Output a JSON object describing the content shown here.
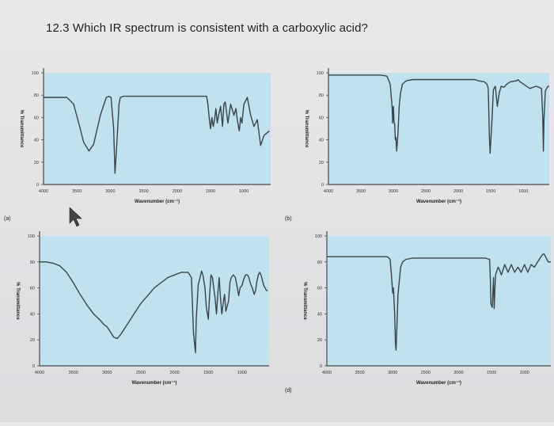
{
  "question": "12.3 Which IR spectrum is consistent with a carboxylic acid?",
  "colors": {
    "plot_bg": "#bfe2ee",
    "trace": "#3a4447",
    "axis": "#4a4a4a",
    "page_bg": "#e6e5e8"
  },
  "chart_data": [
    {
      "type": "line",
      "panel_label": "(a)",
      "xlabel": "Wavenumber (cm⁻¹)",
      "ylabel": "% Transmittance",
      "xlim": [
        4000,
        600
      ],
      "ylim": [
        0,
        100
      ],
      "x_ticks": [
        "4000",
        "3500",
        "3000",
        "2500",
        "2000",
        "1500",
        "1000"
      ],
      "y_ticks": [
        "0",
        "20",
        "40",
        "60",
        "80",
        "100"
      ],
      "x": [
        4000,
        3750,
        3650,
        3550,
        3450,
        3400,
        3320,
        3250,
        3150,
        3060,
        3020,
        2990,
        2950,
        2930,
        2900,
        2870,
        2850,
        2800,
        2500,
        2000,
        1700,
        1560,
        1540,
        1520,
        1500,
        1480,
        1460,
        1440,
        1420,
        1400,
        1380,
        1350,
        1320,
        1300,
        1280,
        1240,
        1200,
        1150,
        1120,
        1100,
        1070,
        1050,
        1030,
        1000,
        950,
        900,
        850,
        800,
        750,
        700,
        620
      ],
      "y": [
        78,
        78,
        78,
        72,
        50,
        38,
        30,
        36,
        62,
        78,
        79,
        78,
        50,
        10,
        40,
        72,
        78,
        79,
        79,
        79,
        79,
        79,
        72,
        60,
        50,
        60,
        52,
        58,
        68,
        55,
        62,
        70,
        52,
        72,
        74,
        55,
        72,
        62,
        68,
        58,
        48,
        60,
        55,
        72,
        78,
        62,
        52,
        58,
        35,
        44,
        48
      ]
    },
    {
      "type": "line",
      "panel_label": "(b)",
      "xlabel": "Wavenumber (cm⁻¹)",
      "ylabel": "% Transmittance",
      "xlim": [
        4000,
        600
      ],
      "ylim": [
        0,
        100
      ],
      "x_ticks": [
        "4000",
        "3500",
        "3000",
        "2500",
        "2000",
        "1500",
        "1000"
      ],
      "y_ticks": [
        "0",
        "20",
        "40",
        "60",
        "80",
        "100"
      ],
      "x": [
        4000,
        3500,
        3200,
        3100,
        3050,
        3020,
        3010,
        3000,
        2990,
        2980,
        2970,
        2960,
        2950,
        2930,
        2910,
        2890,
        2860,
        2800,
        2700,
        2500,
        2000,
        1750,
        1740,
        1700,
        1600,
        1560,
        1540,
        1520,
        1510,
        1480,
        1460,
        1430,
        1400,
        1370,
        1340,
        1300,
        1250,
        1200,
        1100,
        1080,
        1050,
        1000,
        950,
        900,
        800,
        720,
        700,
        690,
        680,
        660,
        640,
        620,
        600
      ],
      "y": [
        98,
        98,
        98,
        97,
        90,
        70,
        55,
        70,
        56,
        54,
        40,
        42,
        30,
        45,
        70,
        82,
        90,
        93,
        94,
        94,
        94,
        94,
        94,
        93,
        92,
        90,
        86,
        40,
        28,
        60,
        85,
        88,
        70,
        82,
        88,
        87,
        90,
        92,
        93,
        94,
        92,
        90,
        88,
        86,
        88,
        86,
        60,
        30,
        60,
        84,
        86,
        88,
        88
      ]
    },
    {
      "type": "line",
      "panel_label": "",
      "xlabel": "Wavenumber (cm⁻¹)",
      "ylabel": "% Transmittance",
      "xlim": [
        4000,
        600
      ],
      "ylim": [
        0,
        100
      ],
      "x_ticks": [
        "4000",
        "3500",
        "3000",
        "2500",
        "2000",
        "1500",
        "1000"
      ],
      "y_ticks": [
        "0",
        "20",
        "40",
        "60",
        "80",
        "100"
      ],
      "x": [
        4000,
        3900,
        3800,
        3700,
        3600,
        3500,
        3400,
        3300,
        3200,
        3100,
        3050,
        3000,
        2950,
        2900,
        2850,
        2800,
        2750,
        2700,
        2650,
        2600,
        2500,
        2400,
        2300,
        2200,
        2100,
        2000,
        1900,
        1800,
        1750,
        1720,
        1690,
        1680,
        1650,
        1600,
        1580,
        1550,
        1530,
        1500,
        1480,
        1460,
        1440,
        1420,
        1400,
        1380,
        1360,
        1340,
        1320,
        1300,
        1280,
        1260,
        1240,
        1200,
        1180,
        1160,
        1130,
        1100,
        1070,
        1050,
        1030,
        1000,
        980,
        950,
        920,
        900,
        880,
        850,
        820,
        800,
        780,
        760,
        740,
        720,
        700,
        680,
        660,
        640,
        620
      ],
      "y": [
        80,
        80,
        79,
        77,
        72,
        64,
        55,
        47,
        40,
        35,
        32,
        30,
        26,
        22,
        21,
        24,
        28,
        32,
        36,
        40,
        48,
        54,
        60,
        64,
        68,
        70,
        72,
        72,
        68,
        25,
        10,
        35,
        62,
        73,
        70,
        60,
        45,
        36,
        55,
        70,
        68,
        60,
        52,
        40,
        55,
        68,
        52,
        40,
        48,
        55,
        42,
        50,
        64,
        68,
        70,
        68,
        60,
        54,
        60,
        62,
        66,
        70,
        70,
        68,
        64,
        60,
        55,
        58,
        65,
        70,
        72,
        70,
        66,
        62,
        60,
        58,
        58
      ]
    },
    {
      "type": "line",
      "panel_label": "(d)",
      "xlabel": "Wavenumber (cm⁻¹)",
      "ylabel": "% Transmittance",
      "xlim": [
        4000,
        600
      ],
      "ylim": [
        0,
        100
      ],
      "x_ticks": [
        "4000",
        "3500",
        "3000",
        "2500",
        "2000",
        "1500",
        "1000"
      ],
      "y_ticks": [
        "0",
        "20",
        "40",
        "60",
        "80",
        "100"
      ],
      "x": [
        4000,
        3500,
        3150,
        3080,
        3040,
        3020,
        3000,
        2990,
        2970,
        2960,
        2950,
        2940,
        2920,
        2880,
        2850,
        2800,
        2700,
        2500,
        2200,
        2000,
        1800,
        1600,
        1530,
        1520,
        1510,
        1490,
        1470,
        1460,
        1440,
        1400,
        1380,
        1350,
        1300,
        1250,
        1200,
        1150,
        1100,
        1050,
        1000,
        950,
        900,
        850,
        800,
        750,
        720,
        700,
        680,
        660,
        640,
        620,
        600
      ],
      "y": [
        84,
        84,
        84,
        84,
        82,
        70,
        56,
        60,
        40,
        18,
        12,
        25,
        55,
        76,
        80,
        82,
        83,
        83,
        83,
        83,
        83,
        83,
        82,
        70,
        48,
        45,
        68,
        44,
        70,
        76,
        74,
        70,
        78,
        72,
        78,
        72,
        76,
        72,
        78,
        72,
        78,
        76,
        80,
        84,
        86,
        86,
        84,
        82,
        80,
        80,
        80
      ]
    }
  ]
}
